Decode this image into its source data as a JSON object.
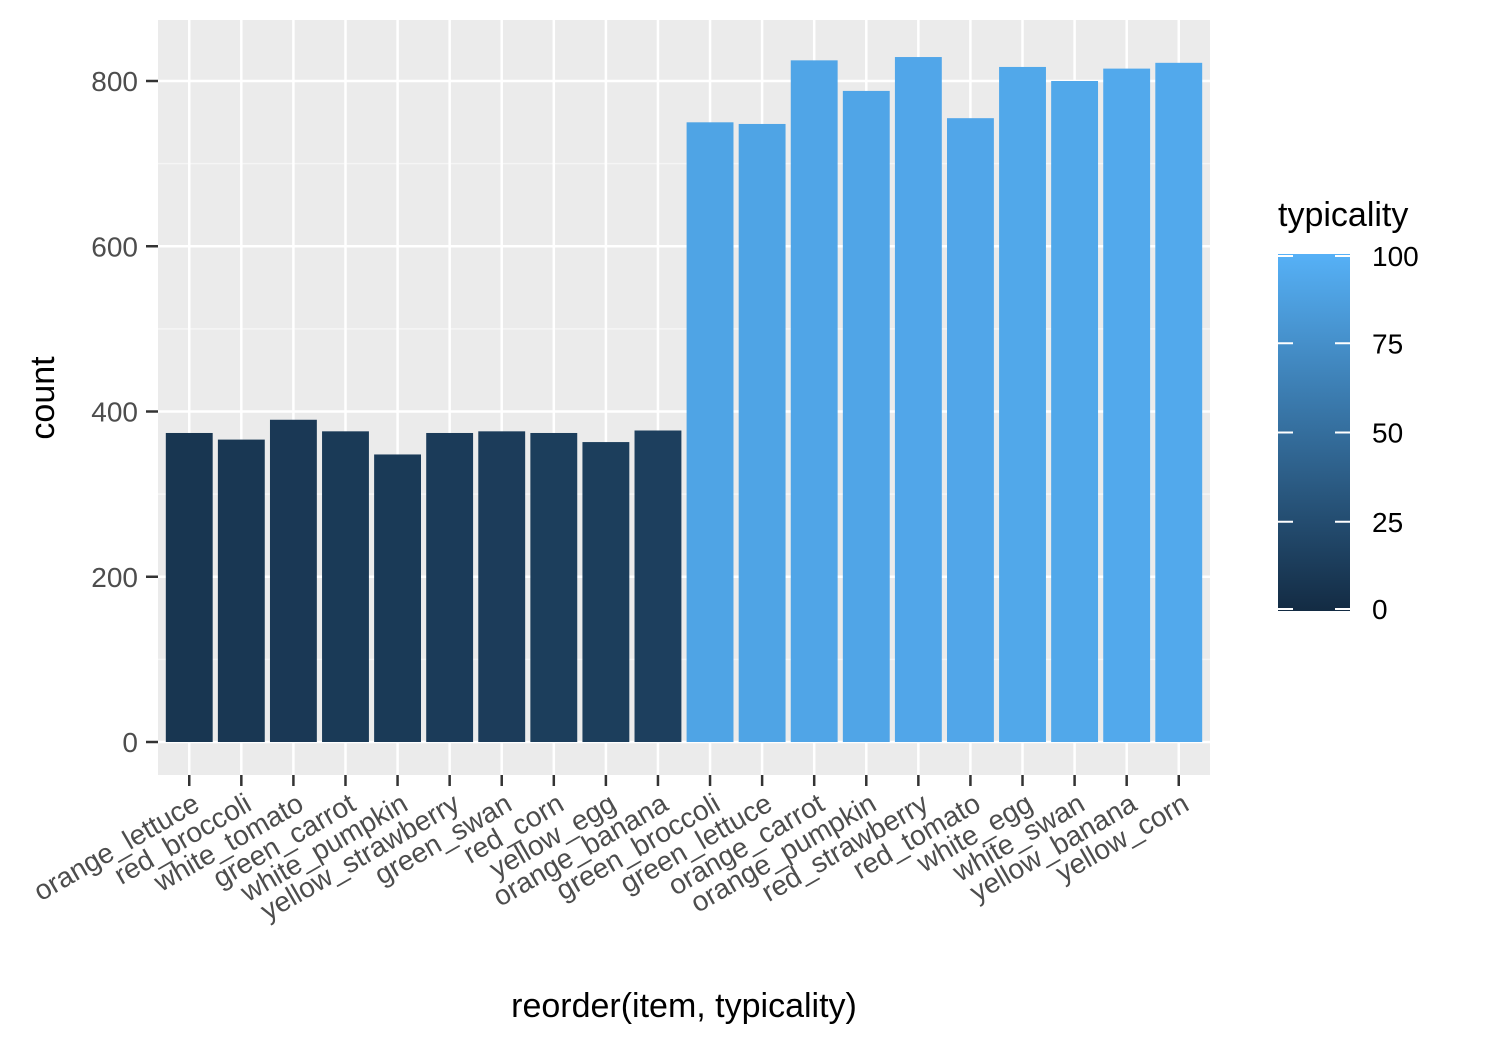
{
  "chart_data": {
    "type": "bar",
    "xlabel": "reorder(item, typicality)",
    "ylabel": "count",
    "ylim": [
      0,
      870
    ],
    "yticks": [
      0,
      200,
      400,
      600,
      800
    ],
    "grid": true,
    "legend_position": "right",
    "legend": {
      "title": "typicality",
      "type": "colorbar",
      "range": [
        0,
        100
      ],
      "ticks": [
        "0",
        "25",
        "50",
        "75",
        "100"
      ],
      "low_color": "#132B43",
      "high_color": "#56B1F7"
    },
    "categories": [
      "orange_lettuce",
      "red_broccoli",
      "white_tomato",
      "green_carrot",
      "white_pumpkin",
      "yellow_strawberry",
      "green_swan",
      "red_corn",
      "yellow_egg",
      "orange_banana",
      "green_broccoli",
      "green_lettuce",
      "orange_carrot",
      "orange_pumpkin",
      "red_strawberry",
      "red_tomato",
      "white_egg",
      "white_swan",
      "yellow_banana",
      "yellow_corn"
    ],
    "values": [
      374,
      366,
      390,
      376,
      348,
      374,
      376,
      374,
      363,
      377,
      750,
      748,
      825,
      788,
      829,
      755,
      817,
      800,
      815,
      822
    ],
    "typicality": [
      8,
      9,
      10,
      11,
      11,
      12,
      13,
      14,
      14,
      15,
      90,
      90,
      91,
      91,
      92,
      92,
      93,
      93,
      94,
      94
    ],
    "colors": {
      "panel_background": "#EBEBEB",
      "grid_major": "#FFFFFF",
      "grid_minor": "#F5F5F5"
    }
  }
}
